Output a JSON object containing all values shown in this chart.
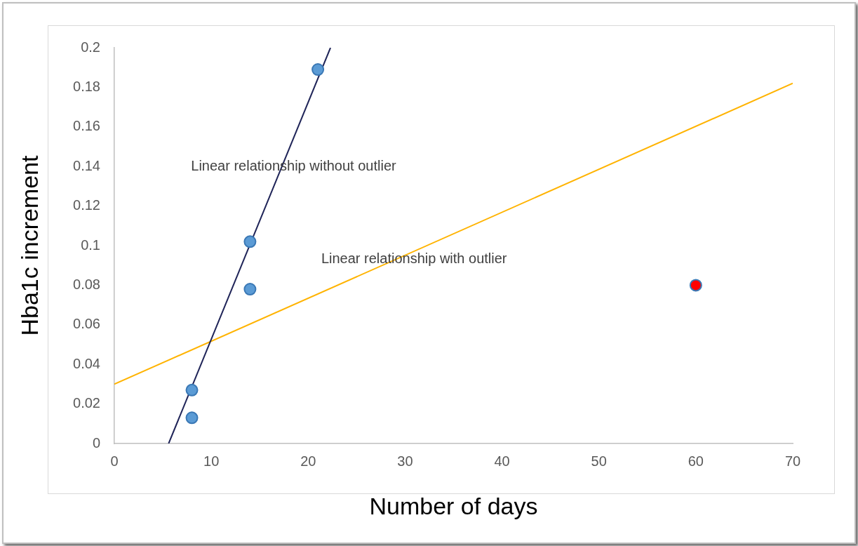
{
  "chart_data": {
    "type": "scatter",
    "xlabel": "Number of days",
    "ylabel": "Hba1c increment",
    "xlim": [
      0,
      70
    ],
    "xticks": [
      0,
      10,
      20,
      30,
      40,
      50,
      60,
      70
    ],
    "ylim": [
      0,
      0.2
    ],
    "yticks": [
      0,
      0.02,
      0.04,
      0.06,
      0.08,
      0.1,
      0.12,
      0.14,
      0.16,
      0.18,
      0.2
    ],
    "grid": false,
    "legend": false,
    "series": [
      {
        "marker": "circle",
        "x": [
          8,
          8,
          14,
          14,
          21,
          60
        ],
        "values": [
          0.013,
          0.027,
          0.078,
          0.102,
          0.189,
          0.08
        ],
        "colors": [
          "#5b9bd5",
          "#5b9bd5",
          "#5b9bd5",
          "#5b9bd5",
          "#5b9bd5",
          "#ff0000"
        ]
      },
      {
        "type": "line",
        "x": [
          5.6,
          22.3
        ],
        "values": [
          0,
          0.2
        ],
        "color": "#1f2458"
      },
      {
        "type": "line",
        "x": [
          0,
          70
        ],
        "values": [
          0.03,
          0.182
        ],
        "color": "#ffb300"
      }
    ],
    "annotations": [
      "Linear relationship without outlier",
      "Linear relationship with outlier"
    ]
  }
}
